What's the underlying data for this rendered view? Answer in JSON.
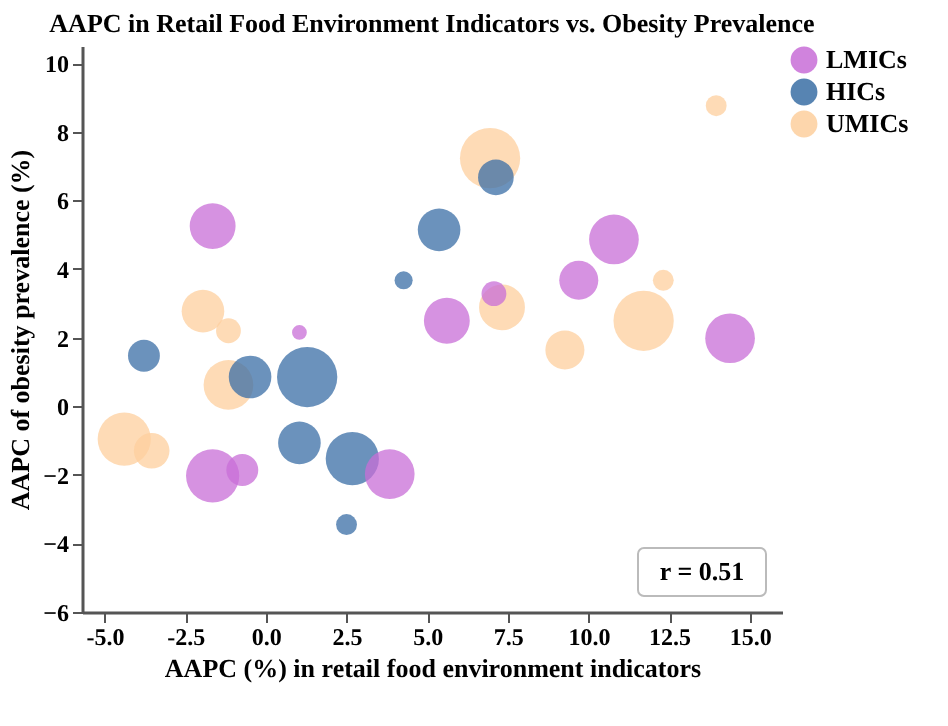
{
  "chart_data": {
    "type": "bubble",
    "title": "AAPC in Retail Food Environment Indicators vs. Obesity Prevalence",
    "xlabel": "AAPC (%) in retail food environment indicators",
    "ylabel": "AAPC of obesity prevalence (%)",
    "xlim": [
      -5.7,
      16
    ],
    "xticks": [
      {
        "value": -5,
        "label": "-5.0"
      },
      {
        "value": -2.5,
        "label": "-2.5"
      },
      {
        "value": 0,
        "label": "0.0"
      },
      {
        "value": 2.5,
        "label": "2.5"
      },
      {
        "value": 5,
        "label": "5.0"
      },
      {
        "value": 7.5,
        "label": "7.5"
      },
      {
        "value": 10,
        "label": "10.0"
      },
      {
        "value": 12.5,
        "label": "12.5"
      },
      {
        "value": 15,
        "label": "15.0"
      }
    ],
    "ylim": [
      -6,
      10.5
    ],
    "yticks": [
      -6,
      -4,
      -2,
      0,
      2,
      4,
      6,
      8,
      10
    ],
    "grid": false,
    "legend": "right",
    "marker": "circle",
    "series": [
      {
        "name": "LMICs",
        "color": "#c86dd7",
        "x": [
          -1.65,
          -1.65,
          1.04,
          -0.73,
          3.84,
          5.61,
          10.79,
          9.7,
          14.39,
          7.07
        ],
        "values": [
          5.25,
          -2.03,
          2.15,
          -1.86,
          -1.98,
          2.49,
          4.86,
          3.67,
          1.98,
          3.28
        ],
        "sizes": [
          0.58,
          0.78,
          0.06,
          0.28,
          0.68,
          0.58,
          0.68,
          0.42,
          0.68,
          0.17
        ]
      },
      {
        "name": "HICs",
        "color": "#3a6ea5",
        "x": [
          5.37,
          4.27,
          -3.78,
          -0.49,
          1.28,
          1.04,
          2.68,
          2.5,
          7.13
        ],
        "values": [
          5.14,
          3.67,
          1.47,
          0.85,
          0.85,
          -1.07,
          -1.53,
          -3.45,
          6.67
        ],
        "sizes": [
          0.5,
          0.09,
          0.28,
          0.5,
          1,
          0.5,
          0.78,
          0.12,
          0.35
        ]
      },
      {
        "name": "UMICs",
        "color": "#fdcf9e",
        "x": [
          6.95,
          13.96,
          -1.95,
          -1.16,
          -1.16,
          -4.39,
          -3.54,
          7.32,
          9.27,
          11.71,
          12.32
        ],
        "values": [
          7.23,
          8.76,
          2.77,
          2.2,
          0.62,
          -0.96,
          -1.3,
          2.88,
          1.64,
          2.49,
          3.67
        ],
        "sizes": [
          1,
          0.12,
          0.5,
          0.17,
          0.68,
          0.78,
          0.35,
          0.58,
          0.42,
          1,
          0.12
        ]
      }
    ],
    "annotations": [
      "r = 0.51"
    ]
  }
}
